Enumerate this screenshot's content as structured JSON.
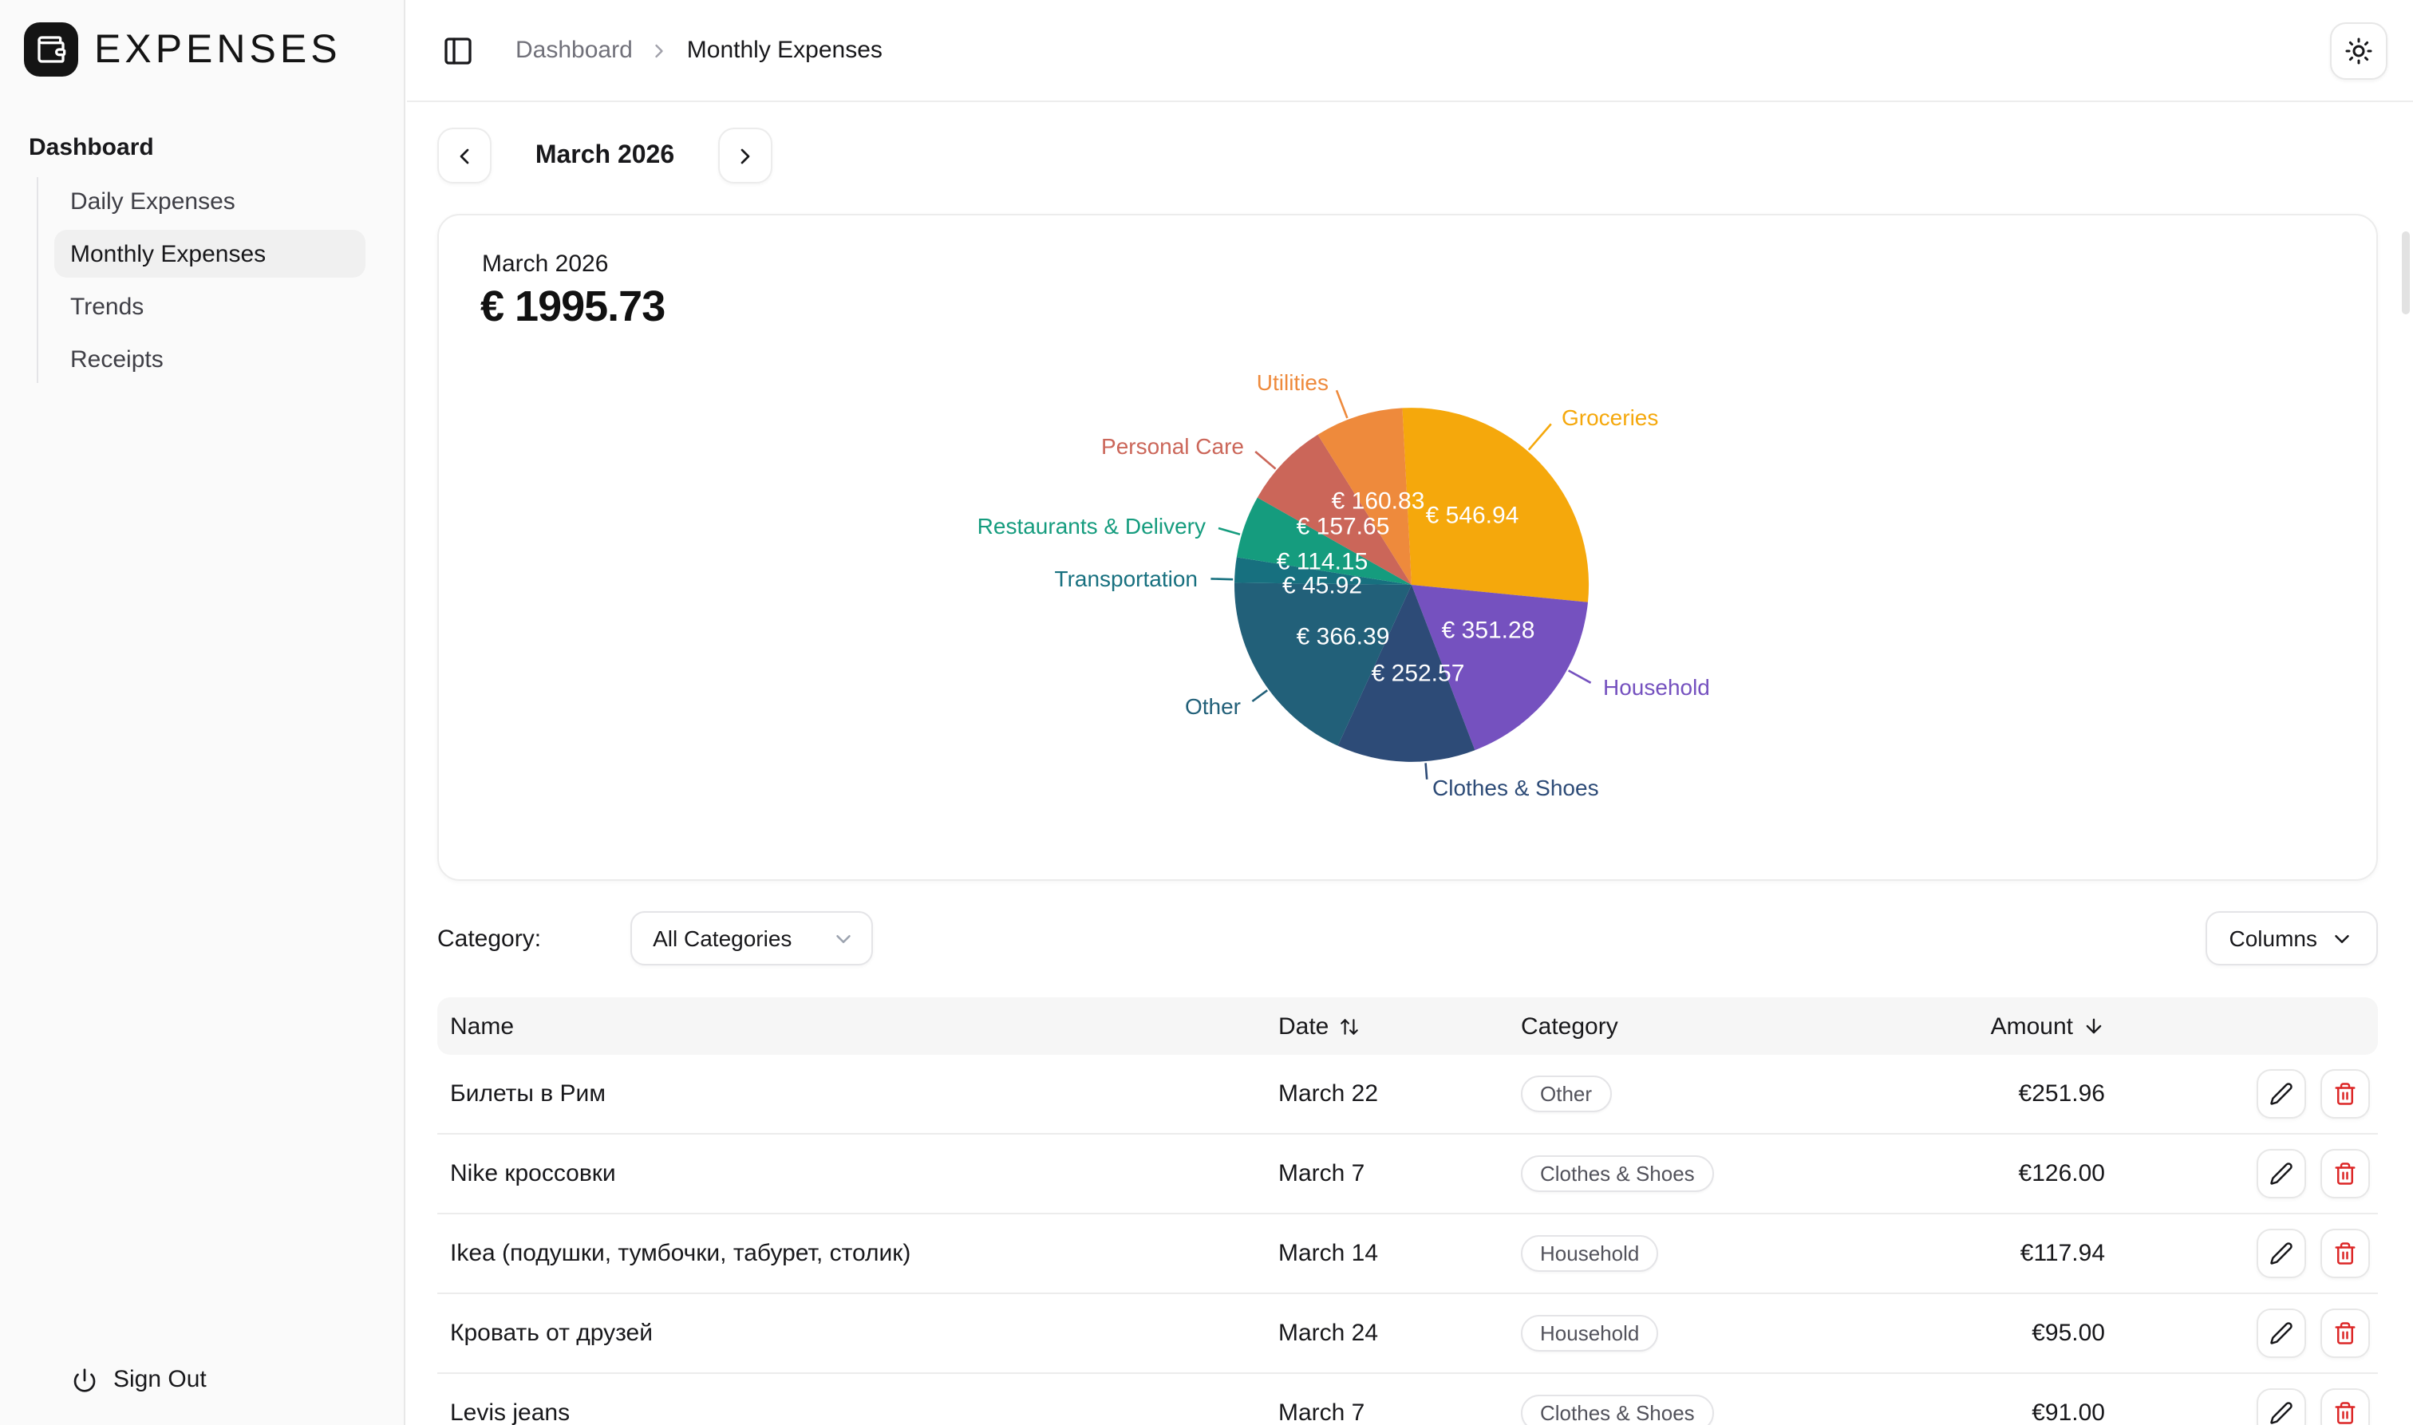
{
  "app": {
    "logo_text": "EXPENSES"
  },
  "sidebar": {
    "section_label": "Dashboard",
    "items": [
      {
        "label": "Daily Expenses",
        "active": false
      },
      {
        "label": "Monthly Expenses",
        "active": true
      },
      {
        "label": "Trends",
        "active": false
      },
      {
        "label": "Receipts",
        "active": false
      }
    ],
    "sign_out_label": "Sign Out"
  },
  "topbar": {
    "breadcrumb": [
      "Dashboard",
      "Monthly Expenses"
    ]
  },
  "month_nav": {
    "label": "March 2026"
  },
  "summary_card": {
    "month_label": "March 2026",
    "total": "€ 1995.73"
  },
  "chart_data": {
    "type": "pie",
    "title": "March 2026 expenses by category",
    "unit": "EUR",
    "total": 1995.73,
    "direction": "clockwise",
    "start_angle_deg": -3,
    "legend_position": "outside-labels",
    "slices": [
      {
        "label": "Groceries",
        "value": 546.94,
        "display": "€ 546.94",
        "color": "#F5A80C"
      },
      {
        "label": "Household",
        "value": 351.28,
        "display": "€ 351.28",
        "color": "#7551BF"
      },
      {
        "label": "Clothes & Shoes",
        "value": 252.57,
        "display": "€ 252.57",
        "color": "#2D4B77"
      },
      {
        "label": "Other",
        "value": 366.39,
        "display": "€ 366.39",
        "color": "#226079"
      },
      {
        "label": "Transportation",
        "value": 45.92,
        "display": "€ 45.92",
        "color": "#17707F"
      },
      {
        "label": "Restaurants & Delivery",
        "value": 114.15,
        "display": "€ 114.15",
        "color": "#159C7E"
      },
      {
        "label": "Personal Care",
        "value": 157.65,
        "display": "€ 157.65",
        "color": "#CB6659"
      },
      {
        "label": "Utilities",
        "value": 160.83,
        "display": "€ 160.83",
        "color": "#EE8A3C"
      }
    ]
  },
  "filter": {
    "label": "Category:",
    "selected": "All Categories",
    "columns_button": "Columns"
  },
  "table": {
    "headers": {
      "name": "Name",
      "date": "Date",
      "category": "Category",
      "amount": "Amount"
    },
    "rows": [
      {
        "name": "Билеты в Рим",
        "date": "March 22",
        "category": "Other",
        "amount": "€251.96"
      },
      {
        "name": "Nike кроссовки",
        "date": "March 7",
        "category": "Clothes & Shoes",
        "amount": "€126.00"
      },
      {
        "name": "Ikea (подушки, тумбочки, табурет, столик)",
        "date": "March 14",
        "category": "Household",
        "amount": "€117.94"
      },
      {
        "name": "Кровать от друзей",
        "date": "March 24",
        "category": "Household",
        "amount": "€95.00"
      },
      {
        "name": "Levis jeans",
        "date": "March 7",
        "category": "Clothes & Shoes",
        "amount": "€91.00"
      }
    ]
  }
}
